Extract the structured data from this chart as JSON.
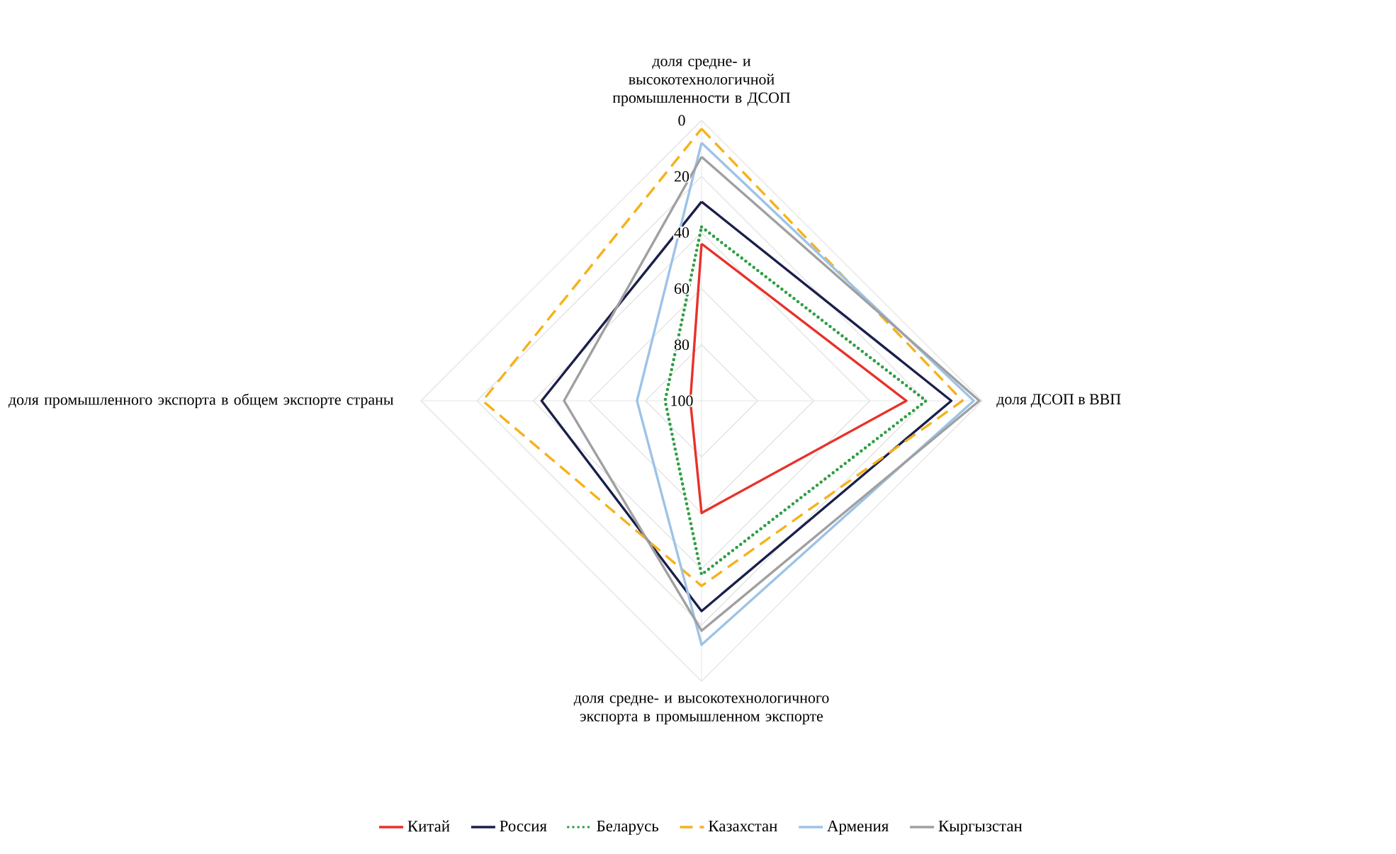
{
  "chart_data": {
    "type": "radar",
    "categories": [
      "доля средне- и высокотехнологичной промышленности в ДСОП",
      "доля ДСОП в ВВП",
      "доля средне- и высокотехнологичного экспорта в промышленном экспорте",
      "доля промышленного экспорта в общем экспорте страны"
    ],
    "series": [
      {
        "name": "Китай",
        "color": "#e8312a",
        "line_style": "solid",
        "values": [
          44,
          27,
          60,
          96
        ]
      },
      {
        "name": "Россия",
        "color": "#1a1f4b",
        "line_style": "solid",
        "values": [
          29,
          11,
          25,
          43
        ]
      },
      {
        "name": "Беларусь",
        "color": "#2e9e44",
        "line_style": "dotted",
        "values": [
          38,
          20,
          38,
          87
        ]
      },
      {
        "name": "Казахстан",
        "color": "#f5b21b",
        "line_style": "dashed",
        "values": [
          3,
          7,
          34,
          22
        ]
      },
      {
        "name": "Армения",
        "color": "#9dc3e6",
        "line_style": "solid",
        "values": [
          8,
          3,
          13,
          77
        ]
      },
      {
        "name": "Кыргызстан",
        "color": "#a0a0a0",
        "line_style": "solid",
        "values": [
          13,
          1,
          18,
          51
        ]
      }
    ],
    "ylim": [
      100,
      0
    ],
    "yticks": [
      0,
      20,
      40,
      60,
      80,
      100
    ],
    "grid": true,
    "legend": "bottom"
  }
}
